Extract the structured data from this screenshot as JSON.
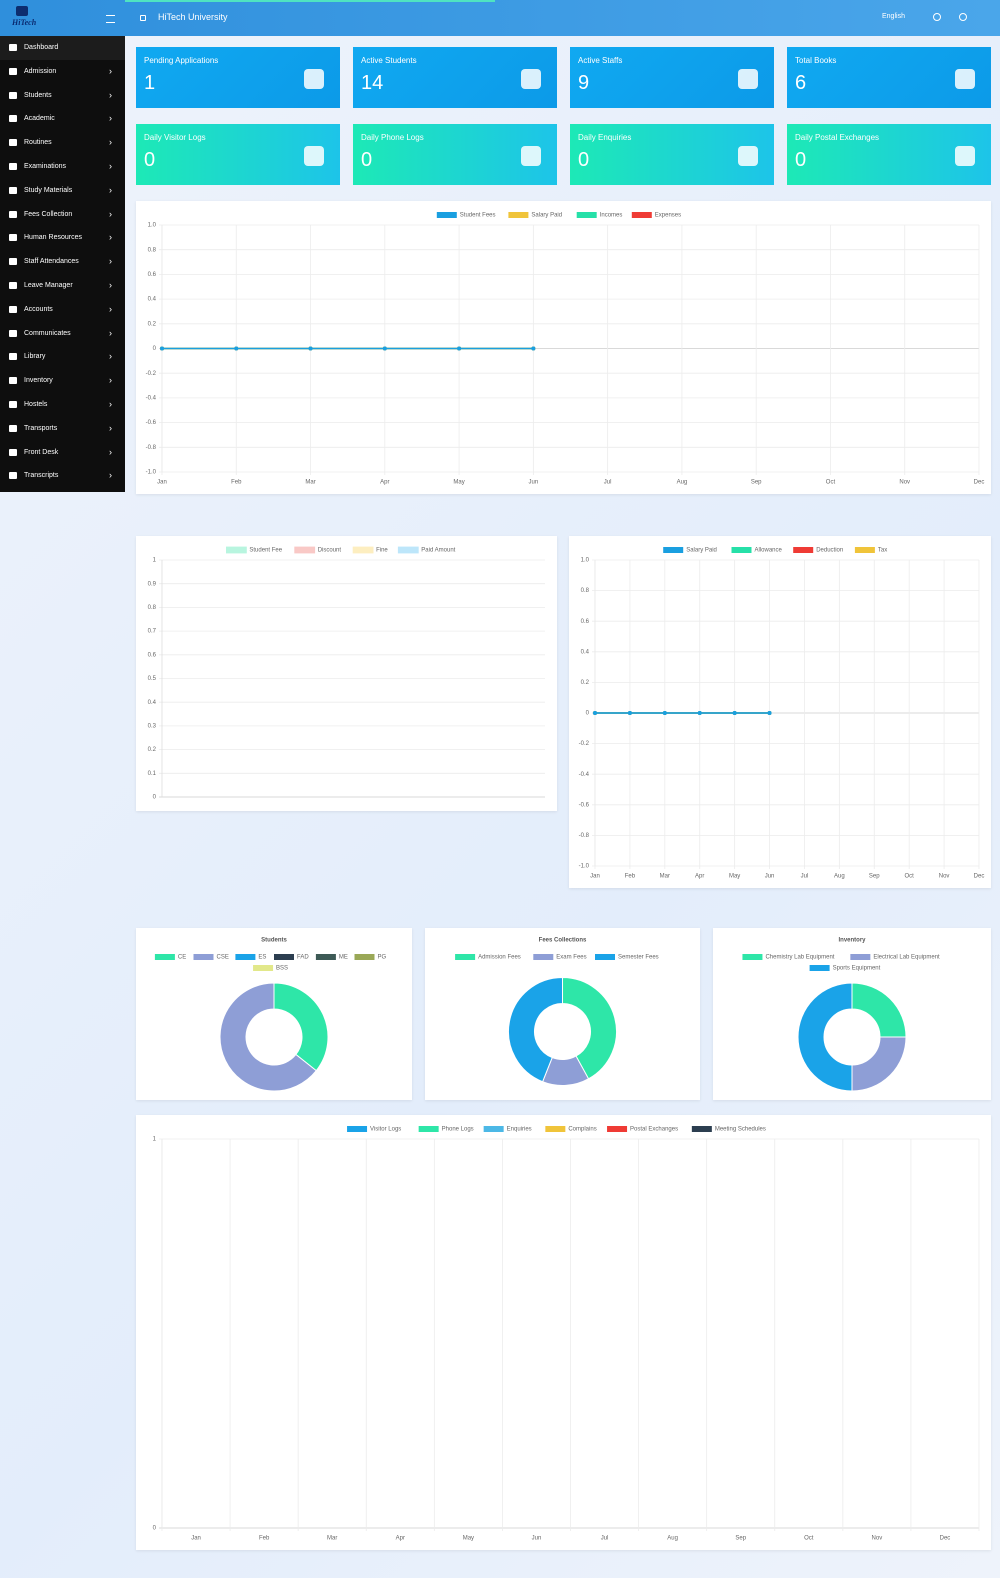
{
  "header": {
    "logo": "HiTech",
    "title": "HiTech University",
    "language": "English"
  },
  "sidebar": [
    "Dashboard",
    "Admission",
    "Students",
    "Academic",
    "Routines",
    "Examinations",
    "Study Materials",
    "Fees Collection",
    "Human Resources",
    "Staff Attendances",
    "Leave Manager",
    "Accounts",
    "Communicates",
    "Library",
    "Inventory",
    "Hostels",
    "Transports",
    "Front Desk",
    "Transcripts"
  ],
  "cards": [
    {
      "label": "Pending Applications",
      "value": 1
    },
    {
      "label": "Active Students",
      "value": 14
    },
    {
      "label": "Active Staffs",
      "value": 9
    },
    {
      "label": "Total Books",
      "value": 6
    },
    {
      "label": "Daily Visitor Logs",
      "value": 0
    },
    {
      "label": "Daily Phone Logs",
      "value": 0
    },
    {
      "label": "Daily Enquiries",
      "value": 0
    },
    {
      "label": "Daily Postal Exchanges",
      "value": 0
    }
  ],
  "chart_data": [
    {
      "type": "line",
      "categories": [
        "Jan",
        "Feb",
        "Mar",
        "Apr",
        "May",
        "Jun",
        "Jul",
        "Aug",
        "Sep",
        "Oct",
        "Nov",
        "Dec"
      ],
      "series": [
        {
          "name": "Student Fees",
          "color": "#1a9fe0",
          "values": [
            0,
            0,
            0,
            0,
            0,
            0,
            null,
            null,
            null,
            null,
            null,
            null
          ]
        },
        {
          "name": "Salary Paid",
          "color": "#f0c43a",
          "values": [
            0,
            0,
            0,
            0,
            0,
            0,
            null,
            null,
            null,
            null,
            null,
            null
          ]
        },
        {
          "name": "Incomes",
          "color": "#26e0a8",
          "values": [
            0,
            0,
            0,
            0,
            0,
            0,
            null,
            null,
            null,
            null,
            null,
            null
          ]
        },
        {
          "name": "Expenses",
          "color": "#ef3b35",
          "values": [
            0,
            0,
            0,
            0,
            0,
            0,
            null,
            null,
            null,
            null,
            null,
            null
          ]
        }
      ],
      "ylim": [
        -1,
        1
      ],
      "yticks": [
        {
          "value": 1,
          "label": "1.0"
        },
        0.8,
        0.6,
        0.4,
        0.2,
        0,
        -0.2,
        -0.4,
        -0.6,
        -0.8,
        {
          "value": -1,
          "label": "-1.0"
        }
      ],
      "grid": true
    },
    {
      "type": "bar",
      "categories": [],
      "series": [
        {
          "name": "Student Fee",
          "color": "#b8f5df",
          "values": []
        },
        {
          "name": "Discount",
          "color": "#f9c9c6",
          "values": []
        },
        {
          "name": "Fine",
          "color": "#fdeec0",
          "values": []
        },
        {
          "name": "Paid Amount",
          "color": "#bde6fa",
          "values": []
        }
      ],
      "ylim": [
        0,
        1
      ],
      "yticks": [
        1,
        0.9,
        0.8,
        0.7,
        0.6,
        0.5,
        0.4,
        0.3,
        0.2,
        0.1,
        0
      ],
      "grid": true
    },
    {
      "type": "line",
      "categories": [
        "Jan",
        "Feb",
        "Mar",
        "Apr",
        "May",
        "Jun",
        "Jul",
        "Aug",
        "Sep",
        "Oct",
        "Nov",
        "Dec"
      ],
      "series": [
        {
          "name": "Salary Paid",
          "color": "#1a9fe0",
          "values": [
            0,
            0,
            0,
            0,
            0,
            0,
            null,
            null,
            null,
            null,
            null,
            null
          ]
        },
        {
          "name": "Allowance",
          "color": "#26e0a8",
          "values": [
            0,
            0,
            0,
            0,
            0,
            0,
            null,
            null,
            null,
            null,
            null,
            null
          ]
        },
        {
          "name": "Deduction",
          "color": "#ef3b35",
          "values": [
            0,
            0,
            0,
            0,
            0,
            0,
            null,
            null,
            null,
            null,
            null,
            null
          ]
        },
        {
          "name": "Tax",
          "color": "#f0c43a",
          "values": [
            0,
            0,
            0,
            0,
            0,
            0,
            null,
            null,
            null,
            null,
            null,
            null
          ]
        }
      ],
      "ylim": [
        -1,
        1
      ],
      "yticks": [
        {
          "value": 1,
          "label": "1.0"
        },
        0.8,
        0.6,
        0.4,
        0.2,
        0,
        -0.2,
        -0.4,
        -0.6,
        -0.8,
        {
          "value": -1,
          "label": "-1.0"
        }
      ],
      "grid": true
    },
    {
      "type": "pie",
      "title": "Students",
      "categories": [
        "CE",
        "CSE",
        "ES",
        "FAD",
        "ME",
        "PG",
        "BSS"
      ],
      "values": [
        5,
        9,
        0,
        0,
        0,
        0,
        0
      ],
      "colors": [
        "#2ee6a8",
        "#8e9ed6",
        "#1aa3e8",
        "#2c3e50",
        "#3d5a56",
        "#9aa857",
        "#e2e88a"
      ]
    },
    {
      "type": "pie",
      "title": "Fees Collections",
      "categories": [
        "Admission Fees",
        "Exam Fees",
        "Semester Fees"
      ],
      "values": [
        42,
        14,
        44
      ],
      "colors": [
        "#2ee6a8",
        "#8e9ed6",
        "#1aa3e8"
      ]
    },
    {
      "type": "pie",
      "title": "Inventory",
      "categories": [
        "Chemistry Lab Equipment",
        "Electrical Lab Equipment",
        "Sports Equipment"
      ],
      "values": [
        25,
        25,
        50
      ],
      "colors": [
        "#2ee6a8",
        "#8e9ed6",
        "#1aa3e8"
      ]
    },
    {
      "type": "bar",
      "categories": [
        "Jan",
        "Feb",
        "Mar",
        "Apr",
        "May",
        "Jun",
        "Jul",
        "Aug",
        "Sep",
        "Oct",
        "Nov",
        "Dec"
      ],
      "series": [
        {
          "name": "Visitor Logs",
          "color": "#1aa3e8",
          "values": [
            null,
            null,
            null,
            null,
            null,
            null,
            null,
            null,
            null,
            null,
            null,
            null
          ]
        },
        {
          "name": "Phone Logs",
          "color": "#2ee6a8",
          "values": [
            null,
            null,
            null,
            null,
            null,
            null,
            null,
            null,
            null,
            null,
            null,
            null
          ]
        },
        {
          "name": "Enquiries",
          "color": "#4cb8e6",
          "values": [
            null,
            null,
            null,
            null,
            null,
            null,
            null,
            null,
            null,
            null,
            null,
            null
          ]
        },
        {
          "name": "Complains",
          "color": "#f0c43a",
          "values": [
            null,
            null,
            null,
            null,
            null,
            null,
            null,
            null,
            null,
            null,
            null,
            null
          ]
        },
        {
          "name": "Postal Exchanges",
          "color": "#ef3b35",
          "values": [
            null,
            null,
            null,
            null,
            null,
            null,
            null,
            null,
            null,
            null,
            null,
            null
          ]
        },
        {
          "name": "Meeting Schedules",
          "color": "#2c3e50",
          "values": [
            null,
            null,
            null,
            null,
            null,
            null,
            null,
            null,
            null,
            null,
            null,
            null
          ]
        }
      ],
      "ylim": [
        0,
        1
      ],
      "yticks": [
        1,
        0
      ],
      "grid": true
    }
  ]
}
